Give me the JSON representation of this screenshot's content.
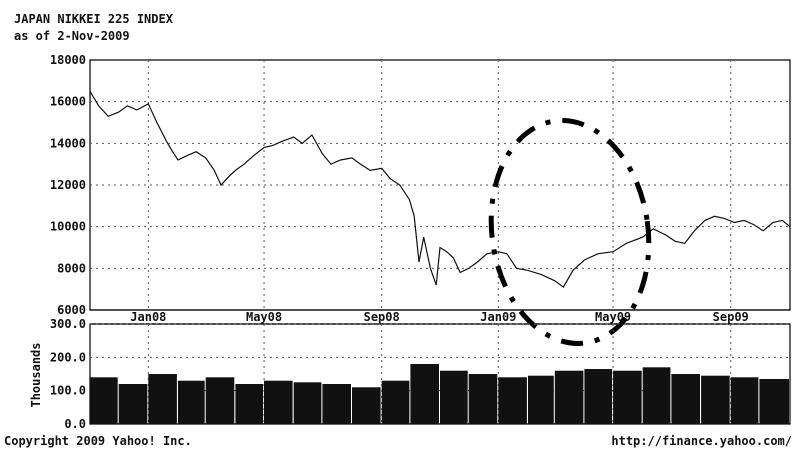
{
  "header": {
    "title": "JAPAN NIKKEI 225 INDEX",
    "subtitle": "as of 2-Nov-2009"
  },
  "footer": {
    "copyright": "Copyright 2009 Yahoo! Inc.",
    "url": "http://finance.yahoo.com/"
  },
  "colors": {
    "line": "#111111",
    "grid": "#555555",
    "highlight": "#000000",
    "background": "#ffffff"
  },
  "chart_data": [
    {
      "type": "line",
      "title": "JAPAN NIKKEI 225 INDEX",
      "subtitle": "as of 2-Nov-2009",
      "xlabel": "",
      "ylabel": "",
      "x_tick_labels": [
        "Jan08",
        "May08",
        "Sep08",
        "Jan09",
        "May09",
        "Sep09"
      ],
      "x_tick_dates": [
        "2008-01-01",
        "2008-05-01",
        "2008-09-01",
        "2009-01-01",
        "2009-05-01",
        "2009-09-01"
      ],
      "xlim": [
        "2007-11-01",
        "2009-11-02"
      ],
      "y_ticks": [
        6000,
        8000,
        10000,
        12000,
        14000,
        16000,
        18000
      ],
      "y_tick_labels": [
        "6000",
        "8000",
        "10000",
        "12000",
        "14000",
        "16000",
        "18000"
      ],
      "ylim": [
        6000,
        18000
      ],
      "grid": true,
      "series": [
        {
          "values": [
            {
              "x": "2007-11-01",
              "y": 16500
            },
            {
              "x": "2007-11-10",
              "y": 15800
            },
            {
              "x": "2007-11-20",
              "y": 15300
            },
            {
              "x": "2007-12-01",
              "y": 15500
            },
            {
              "x": "2007-12-10",
              "y": 15800
            },
            {
              "x": "2007-12-20",
              "y": 15600
            },
            {
              "x": "2008-01-01",
              "y": 15900
            },
            {
              "x": "2008-01-10",
              "y": 15000
            },
            {
              "x": "2008-01-20",
              "y": 14100
            },
            {
              "x": "2008-01-25",
              "y": 13700
            },
            {
              "x": "2008-02-01",
              "y": 13200
            },
            {
              "x": "2008-02-10",
              "y": 13400
            },
            {
              "x": "2008-02-20",
              "y": 13600
            },
            {
              "x": "2008-03-01",
              "y": 13300
            },
            {
              "x": "2008-03-10",
              "y": 12700
            },
            {
              "x": "2008-03-17",
              "y": 12000
            },
            {
              "x": "2008-03-25",
              "y": 12400
            },
            {
              "x": "2008-04-01",
              "y": 12700
            },
            {
              "x": "2008-04-10",
              "y": 13000
            },
            {
              "x": "2008-04-20",
              "y": 13400
            },
            {
              "x": "2008-05-01",
              "y": 13800
            },
            {
              "x": "2008-05-10",
              "y": 13900
            },
            {
              "x": "2008-05-20",
              "y": 14100
            },
            {
              "x": "2008-06-01",
              "y": 14300
            },
            {
              "x": "2008-06-10",
              "y": 14000
            },
            {
              "x": "2008-06-20",
              "y": 14400
            },
            {
              "x": "2008-07-01",
              "y": 13500
            },
            {
              "x": "2008-07-10",
              "y": 13000
            },
            {
              "x": "2008-07-20",
              "y": 13200
            },
            {
              "x": "2008-08-01",
              "y": 13300
            },
            {
              "x": "2008-08-10",
              "y": 13000
            },
            {
              "x": "2008-08-20",
              "y": 12700
            },
            {
              "x": "2008-09-01",
              "y": 12800
            },
            {
              "x": "2008-09-10",
              "y": 12300
            },
            {
              "x": "2008-09-20",
              "y": 12000
            },
            {
              "x": "2008-09-30",
              "y": 11300
            },
            {
              "x": "2008-10-05",
              "y": 10500
            },
            {
              "x": "2008-10-10",
              "y": 8300
            },
            {
              "x": "2008-10-15",
              "y": 9500
            },
            {
              "x": "2008-10-22",
              "y": 8000
            },
            {
              "x": "2008-10-28",
              "y": 7200
            },
            {
              "x": "2008-11-01",
              "y": 9000
            },
            {
              "x": "2008-11-08",
              "y": 8800
            },
            {
              "x": "2008-11-15",
              "y": 8500
            },
            {
              "x": "2008-11-22",
              "y": 7800
            },
            {
              "x": "2008-12-01",
              "y": 8000
            },
            {
              "x": "2008-12-10",
              "y": 8300
            },
            {
              "x": "2008-12-20",
              "y": 8700
            },
            {
              "x": "2009-01-01",
              "y": 8800
            },
            {
              "x": "2009-01-10",
              "y": 8700
            },
            {
              "x": "2009-01-20",
              "y": 8000
            },
            {
              "x": "2009-02-01",
              "y": 7900
            },
            {
              "x": "2009-02-15",
              "y": 7700
            },
            {
              "x": "2009-03-01",
              "y": 7400
            },
            {
              "x": "2009-03-10",
              "y": 7100
            },
            {
              "x": "2009-03-20",
              "y": 7900
            },
            {
              "x": "2009-04-01",
              "y": 8400
            },
            {
              "x": "2009-04-15",
              "y": 8700
            },
            {
              "x": "2009-05-01",
              "y": 8800
            },
            {
              "x": "2009-05-15",
              "y": 9200
            },
            {
              "x": "2009-06-01",
              "y": 9500
            },
            {
              "x": "2009-06-12",
              "y": 9900
            },
            {
              "x": "2009-06-25",
              "y": 9600
            },
            {
              "x": "2009-07-05",
              "y": 9300
            },
            {
              "x": "2009-07-15",
              "y": 9200
            },
            {
              "x": "2009-07-25",
              "y": 9800
            },
            {
              "x": "2009-08-05",
              "y": 10300
            },
            {
              "x": "2009-08-15",
              "y": 10500
            },
            {
              "x": "2009-08-25",
              "y": 10400
            },
            {
              "x": "2009-09-05",
              "y": 10200
            },
            {
              "x": "2009-09-15",
              "y": 10300
            },
            {
              "x": "2009-09-25",
              "y": 10100
            },
            {
              "x": "2009-10-05",
              "y": 9800
            },
            {
              "x": "2009-10-15",
              "y": 10200
            },
            {
              "x": "2009-10-25",
              "y": 10300
            },
            {
              "x": "2009-11-02",
              "y": 10000
            }
          ]
        }
      ]
    },
    {
      "type": "bar",
      "ylabel": "Thousands",
      "y_ticks": [
        0,
        100,
        200,
        300
      ],
      "y_tick_labels": [
        "0.0",
        "100.0",
        "200.0",
        "300.0"
      ],
      "ylim": [
        0,
        300
      ],
      "grid": true,
      "series": [
        {
          "values": [
            {
              "x": "2007-11-01",
              "y": 140
            },
            {
              "x": "2007-12-01",
              "y": 120
            },
            {
              "x": "2008-01-01",
              "y": 150
            },
            {
              "x": "2008-02-01",
              "y": 130
            },
            {
              "x": "2008-03-01",
              "y": 140
            },
            {
              "x": "2008-04-01",
              "y": 120
            },
            {
              "x": "2008-05-01",
              "y": 130
            },
            {
              "x": "2008-06-01",
              "y": 125
            },
            {
              "x": "2008-07-01",
              "y": 120
            },
            {
              "x": "2008-08-01",
              "y": 110
            },
            {
              "x": "2008-09-01",
              "y": 130
            },
            {
              "x": "2008-10-01",
              "y": 180
            },
            {
              "x": "2008-11-01",
              "y": 160
            },
            {
              "x": "2008-12-01",
              "y": 150
            },
            {
              "x": "2009-01-01",
              "y": 140
            },
            {
              "x": "2009-02-01",
              "y": 145
            },
            {
              "x": "2009-03-01",
              "y": 160
            },
            {
              "x": "2009-04-01",
              "y": 165
            },
            {
              "x": "2009-05-01",
              "y": 160
            },
            {
              "x": "2009-06-01",
              "y": 170
            },
            {
              "x": "2009-07-01",
              "y": 150
            },
            {
              "x": "2009-08-01",
              "y": 145
            },
            {
              "x": "2009-09-01",
              "y": 140
            },
            {
              "x": "2009-10-01",
              "y": 135
            }
          ]
        }
      ]
    }
  ]
}
